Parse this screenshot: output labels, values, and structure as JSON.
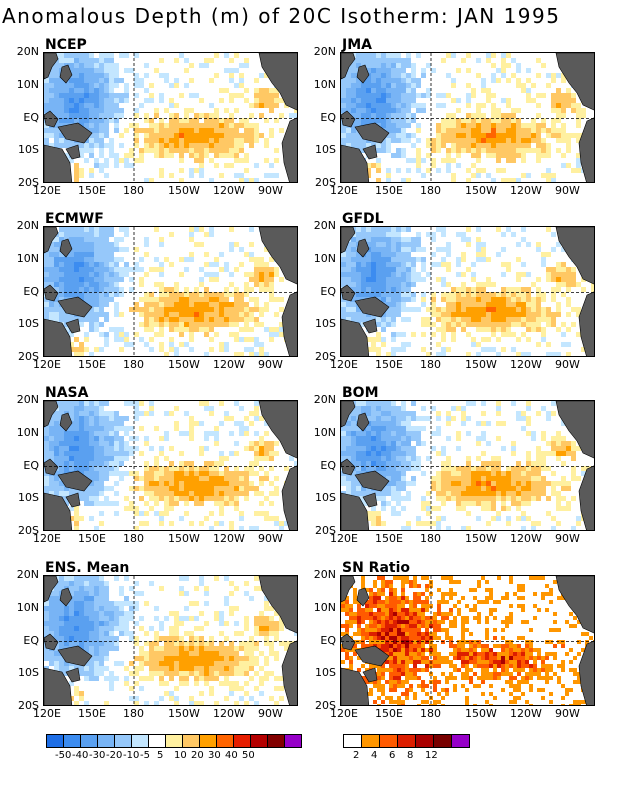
{
  "title": "Anomalous Depth (m) of 20C Isotherm: JAN 1995",
  "panels": [
    {
      "name": "NCEP",
      "style": "anom"
    },
    {
      "name": "JMA",
      "style": "anom"
    },
    {
      "name": "ECMWF",
      "style": "anom"
    },
    {
      "name": "GFDL",
      "style": "anom"
    },
    {
      "name": "NASA",
      "style": "anom"
    },
    {
      "name": "BOM",
      "style": "anom"
    },
    {
      "name": "ENS. Mean",
      "style": "anom"
    },
    {
      "name": "SN Ratio",
      "style": "snr"
    }
  ],
  "lat_labels": [
    "20N",
    "10N",
    "EQ",
    "10S",
    "20S"
  ],
  "lon_labels": [
    "120E",
    "150E",
    "180",
    "150W",
    "120W",
    "90W"
  ],
  "anomaly_colorbar": {
    "colors": [
      "#1e6ee6",
      "#3c8cf0",
      "#5aa0f0",
      "#78b4f5",
      "#96c8fa",
      "#c3e6ff",
      "#ffffff",
      "#fff0a0",
      "#ffc864",
      "#ffa000",
      "#ff6400",
      "#e61e00",
      "#b40000",
      "#820000",
      "#9600c8"
    ],
    "labels": [
      "-50",
      "-40",
      "-30",
      "-20",
      "-10",
      "-5",
      "5",
      "10",
      "20",
      "30",
      "40",
      "50"
    ]
  },
  "snr_colorbar": {
    "colors": [
      "#ffffff",
      "#ff9600",
      "#ff5a00",
      "#dc1e00",
      "#aa0000",
      "#780000",
      "#9600c8"
    ],
    "labels": [
      "2",
      "4",
      "6",
      "8",
      "12"
    ]
  },
  "colors": {
    "land": "#5a5a5a",
    "frame": "#000000"
  }
}
